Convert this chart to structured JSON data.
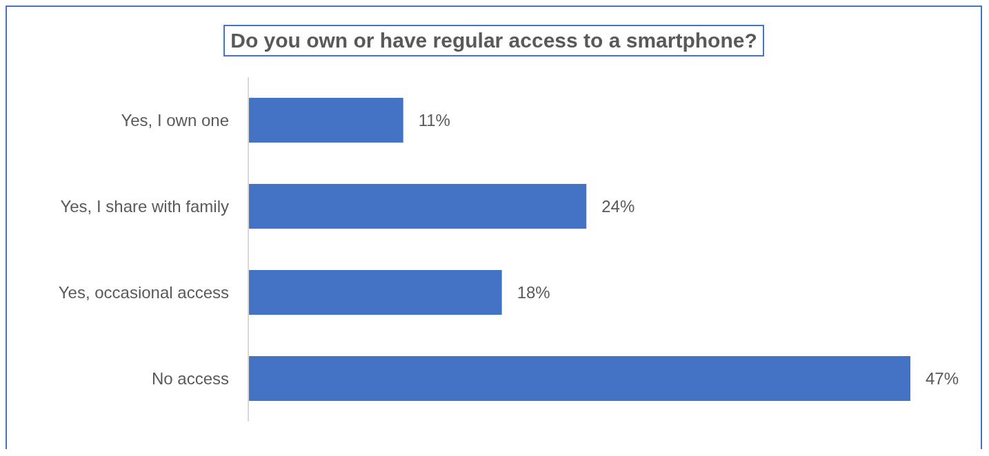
{
  "chart_data": {
    "type": "bar",
    "orientation": "horizontal",
    "title": "Do you own or have regular access to a smartphone?",
    "categories": [
      "Yes, I own one",
      "Yes, I share with family",
      "Yes, occasional access",
      "No access"
    ],
    "values": [
      11,
      24,
      18,
      47
    ],
    "value_labels": [
      "11%",
      "24%",
      "18%",
      "47%"
    ],
    "color": "#4472c4"
  }
}
